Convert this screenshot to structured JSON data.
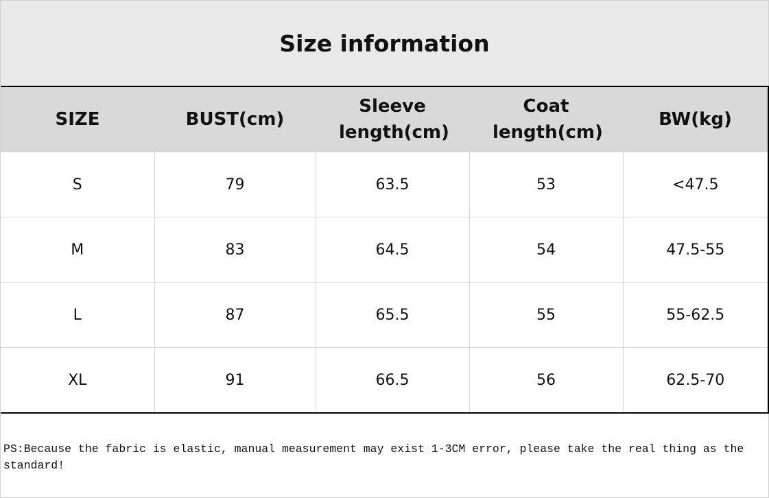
{
  "header": {
    "title": "Size information"
  },
  "table": {
    "columns": [
      "SIZE",
      "BUST(cm)",
      "Sleeve length(cm)",
      "Coat length(cm)",
      "BW(kg)"
    ],
    "rows": [
      [
        "S",
        "79",
        "63.5",
        "53",
        "<47.5"
      ],
      [
        "M",
        "83",
        "64.5",
        "54",
        "47.5-55"
      ],
      [
        "L",
        "87",
        "65.5",
        "55",
        "55-62.5"
      ],
      [
        "XL",
        "91",
        "66.5",
        "56",
        "62.5-70"
      ]
    ]
  },
  "footer": {
    "note": "PS:Because the fabric is elastic, manual measurement may exist 1-3CM error, please take the real thing as the standard!"
  }
}
